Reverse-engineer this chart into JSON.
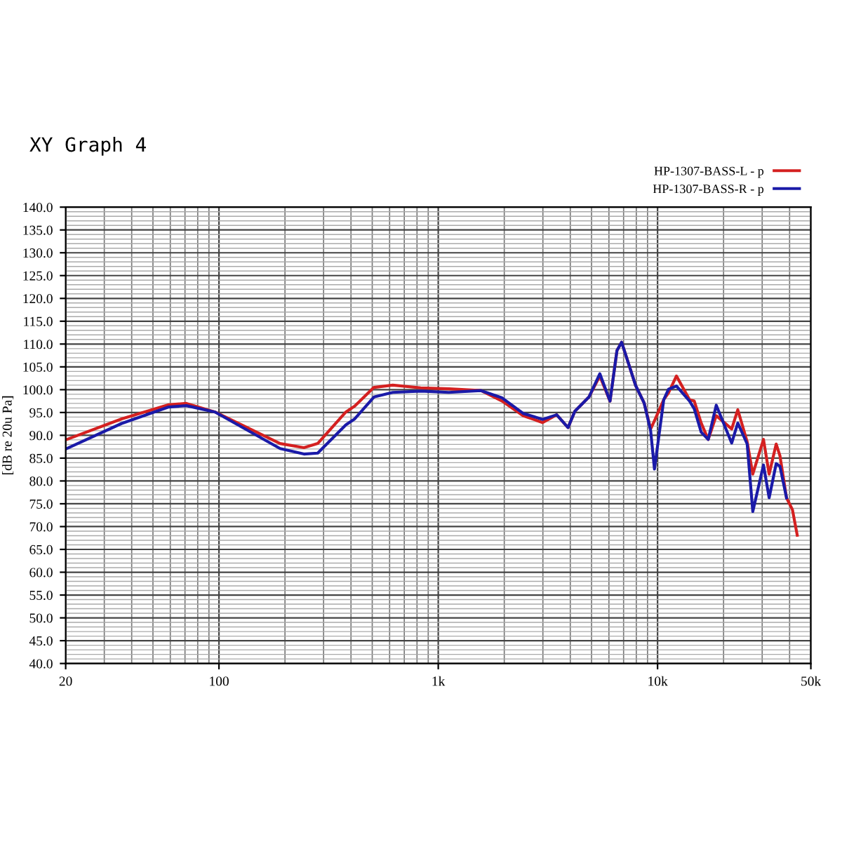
{
  "chart_data": {
    "type": "line",
    "title": "XY Graph 4",
    "ylabel": "[dB re 20u Pa]",
    "log": "x",
    "xlim": [
      20,
      50000
    ],
    "xticks": [
      20,
      100,
      {
        "value": 1000,
        "label": "1k"
      },
      {
        "value": 10000,
        "label": "10k"
      },
      {
        "value": 50000,
        "label": "50k"
      }
    ],
    "ylim": [
      40,
      140
    ],
    "yticks": [
      {
        "value": 40,
        "label": "40.0"
      },
      {
        "value": 45,
        "label": "45.0"
      },
      {
        "value": 50,
        "label": "50.0"
      },
      {
        "value": 55,
        "label": "55.0"
      },
      {
        "value": 60,
        "label": "60.0"
      },
      {
        "value": 65,
        "label": "65.0"
      },
      {
        "value": 70,
        "label": "70.0"
      },
      {
        "value": 75,
        "label": "75.0"
      },
      {
        "value": 80,
        "label": "80.0"
      },
      {
        "value": 85,
        "label": "85.0"
      },
      {
        "value": 90,
        "label": "90.0"
      },
      {
        "value": 95,
        "label": "95.0"
      },
      {
        "value": 100,
        "label": "100.0"
      },
      {
        "value": 105,
        "label": "105.0"
      },
      {
        "value": 110,
        "label": "110.0"
      },
      {
        "value": 115,
        "label": "115.0"
      },
      {
        "value": 120,
        "label": "120.0"
      },
      {
        "value": 125,
        "label": "125.0"
      },
      {
        "value": 130,
        "label": "130.0"
      },
      {
        "value": 135,
        "label": "135.0"
      },
      {
        "value": 140,
        "label": "140.0"
      }
    ],
    "grid": true,
    "legend": "top right",
    "marker": "none",
    "line_style": "solid",
    "series": [
      {
        "name": "HP-1307-BASS-L - p",
        "color": "#d42020",
        "x": [
          20,
          36,
          59,
          71,
          96,
          190,
          244,
          282,
          379,
          416,
          509,
          620,
          832,
          1117,
          1567,
          1955,
          2439,
          2992,
          3467,
          3906,
          4200,
          4866,
          5454,
          6070,
          6531,
          6856,
          7945,
          8684,
          9300,
          9680,
          10670,
          11220,
          12190,
          14000,
          14700,
          15810,
          17020,
          18520,
          21780,
          23220,
          25620,
          27180,
          30410,
          32270,
          34750,
          36150,
          38730,
          41210,
          43350
        ],
        "values": [
          89,
          93.6,
          96.7,
          97,
          95.1,
          88.2,
          87.3,
          88.2,
          95.1,
          96.4,
          100.5,
          101,
          100.4,
          100.2,
          99.8,
          97.5,
          94.3,
          92.8,
          94.5,
          91.7,
          95.3,
          98.4,
          103,
          97.5,
          108.6,
          110.4,
          100.9,
          97.1,
          91.4,
          93.2,
          97.8,
          99.3,
          103,
          97.8,
          97.5,
          92.7,
          89.1,
          94.3,
          91.4,
          95.6,
          88.6,
          81.5,
          89.1,
          81.5,
          88.1,
          85.5,
          76.3,
          73.7,
          68.1
        ]
      },
      {
        "name": "HP-1307-BASS-R - p",
        "color": "#1a1aa8",
        "x": [
          20,
          36,
          59,
          71,
          96,
          190,
          244,
          282,
          379,
          416,
          509,
          620,
          832,
          1117,
          1567,
          1955,
          2439,
          2992,
          3467,
          3906,
          4200,
          4866,
          5454,
          6070,
          6531,
          6856,
          7945,
          8684,
          9300,
          9680,
          10670,
          11220,
          12190,
          14000,
          14700,
          15810,
          17020,
          18520,
          21780,
          23220,
          25620,
          27180,
          30410,
          32270,
          34750,
          36150,
          38730
        ],
        "values": [
          87,
          92.6,
          96.2,
          96.5,
          95.1,
          87.1,
          85.9,
          86.1,
          92.3,
          93.6,
          98.4,
          99.4,
          99.7,
          99.4,
          99.8,
          98.2,
          94.8,
          93.5,
          94.5,
          91.7,
          95.3,
          98.4,
          103.5,
          97.5,
          108.6,
          110.4,
          100.9,
          97.1,
          91,
          82.6,
          97.8,
          100.1,
          100.8,
          97.5,
          95.8,
          90.7,
          89.1,
          96.6,
          88.3,
          92.7,
          88.1,
          73.3,
          83.5,
          76.3,
          83.8,
          83.2,
          76.3
        ]
      }
    ]
  }
}
